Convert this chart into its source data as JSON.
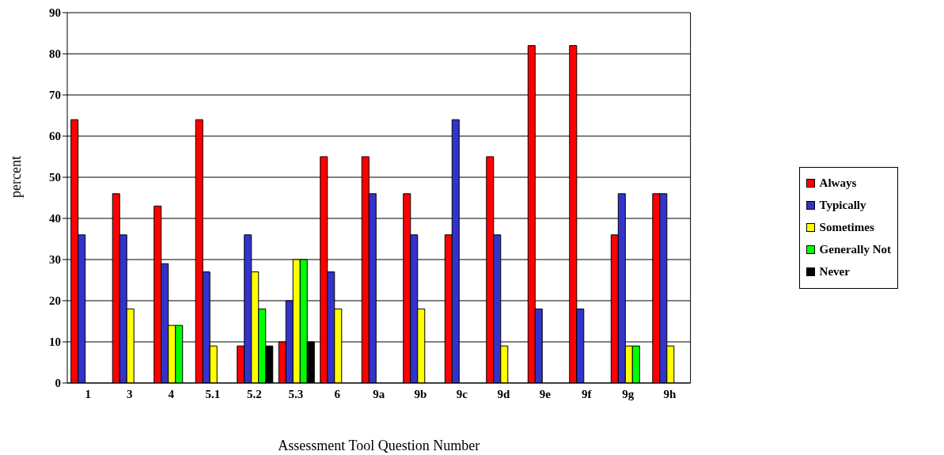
{
  "chart_data": {
    "type": "bar",
    "xlabel": "Assessment Tool Question Number",
    "ylabel": "percent",
    "categories": [
      "1",
      "3",
      "4",
      "5.1",
      "5.2",
      "5.3",
      "6",
      "9a",
      "9b",
      "9c",
      "9d",
      "9e",
      "9f",
      "9g",
      "9h"
    ],
    "series": [
      {
        "name": "Always",
        "color": "#ff0000",
        "values": [
          64,
          46,
          43,
          64,
          9,
          10,
          55,
          55,
          46,
          36,
          55,
          82,
          82,
          36,
          46
        ]
      },
      {
        "name": "Typically",
        "color": "#3333cc",
        "values": [
          36,
          36,
          29,
          27,
          36,
          20,
          27,
          46,
          36,
          64,
          36,
          18,
          18,
          46,
          46
        ]
      },
      {
        "name": "Sometimes",
        "color": "#ffff00",
        "values": [
          0,
          18,
          14,
          9,
          27,
          30,
          18,
          0,
          18,
          0,
          9,
          0,
          0,
          9,
          9
        ]
      },
      {
        "name": "Generally Not",
        "color": "#00ff00",
        "values": [
          0,
          0,
          14,
          0,
          18,
          30,
          0,
          0,
          0,
          0,
          0,
          0,
          0,
          9,
          0
        ]
      },
      {
        "name": "Never",
        "color": "#000000",
        "values": [
          0,
          0,
          0,
          0,
          9,
          10,
          0,
          0,
          0,
          0,
          0,
          0,
          0,
          0,
          0
        ]
      }
    ],
    "ylim": [
      0,
      90
    ],
    "yticks": [
      0,
      10,
      20,
      30,
      40,
      50,
      60,
      70,
      80,
      90
    ],
    "grid": "y",
    "legend": "right"
  }
}
